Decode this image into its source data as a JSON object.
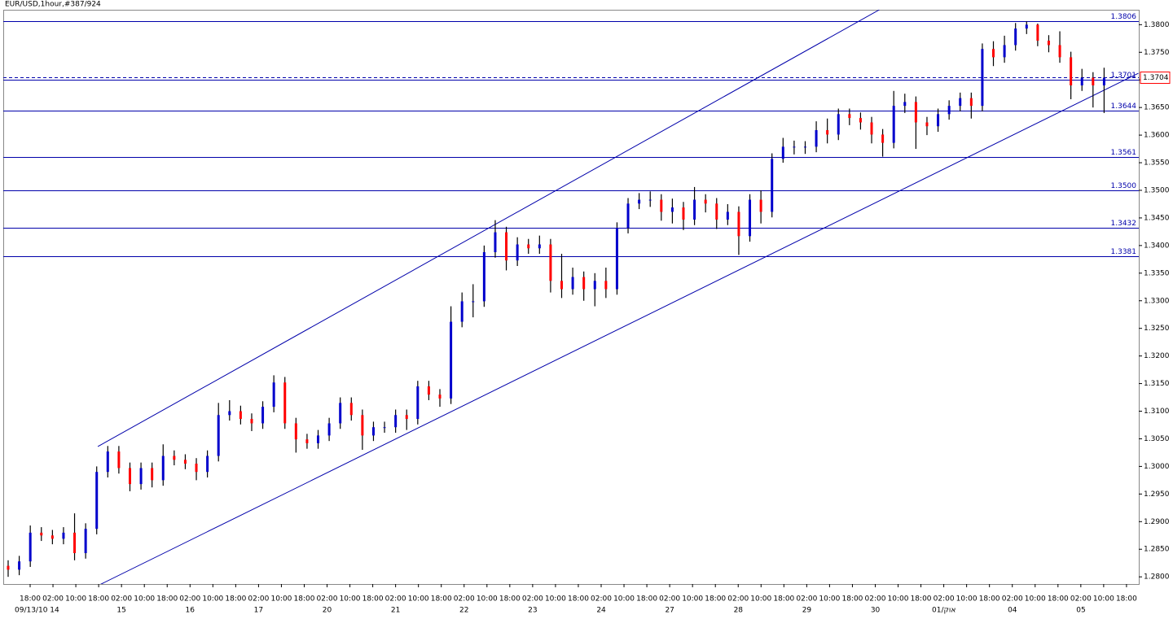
{
  "chart_data": {
    "type": "ohlc",
    "title": "EUR/USD,1hour,#387/924",
    "up_color": "#0000cc",
    "down_color": "#ff0000",
    "open": [
      1.282,
      1.2813,
      1.2828,
      1.288,
      1.2875,
      1.2869,
      1.288,
      1.2843,
      1.2887,
      1.299,
      1.3027,
      1.2997,
      1.2968,
      1.2997,
      1.2975,
      1.3019,
      1.3012,
      1.3005,
      1.299,
      1.3019,
      1.3093,
      1.31,
      1.3086,
      1.3078,
      1.3108,
      1.3152,
      1.3078,
      1.3049,
      1.3042,
      1.3056,
      1.3078,
      1.3115,
      1.3093,
      1.3056,
      1.3071,
      1.3071,
      1.3093,
      1.3086,
      1.3145,
      1.313,
      1.3123,
      1.3262,
      1.3299,
      1.3299,
      1.3388,
      1.3424,
      1.3373,
      1.3402,
      1.3395,
      1.3402,
      1.3336,
      1.3321,
      1.3343,
      1.3321,
      1.3336,
      1.3321,
      1.3432,
      1.3476,
      1.3483,
      1.3483,
      1.3461,
      1.3469,
      1.3447,
      1.3483,
      1.3476,
      1.3447,
      1.3461,
      1.3417,
      1.3483,
      1.3461,
      1.3557,
      1.3579,
      1.3579,
      1.3579,
      1.3609,
      1.3601,
      1.3638,
      1.3631,
      1.3623,
      1.3601,
      1.3586,
      1.3653,
      1.366,
      1.3623,
      1.3616,
      1.3638,
      1.3653,
      1.3667,
      1.3653,
      1.3756,
      1.3741,
      1.3763,
      1.3793,
      1.38,
      1.3771,
      1.3763,
      1.3741,
      1.369,
      1.3704,
      1.369
    ],
    "high": [
      1.283,
      1.2838,
      1.2893,
      1.289,
      1.2885,
      1.289,
      1.2915,
      1.2897,
      1.3,
      1.3037,
      1.3037,
      1.3007,
      1.3007,
      1.3007,
      1.304,
      1.3029,
      1.3022,
      1.3015,
      1.3029,
      1.3115,
      1.312,
      1.311,
      1.3096,
      1.3118,
      1.3165,
      1.3162,
      1.3088,
      1.3059,
      1.3066,
      1.3088,
      1.3125,
      1.3125,
      1.3103,
      1.3081,
      1.3081,
      1.3103,
      1.3103,
      1.3155,
      1.3155,
      1.314,
      1.329,
      1.3315,
      1.333,
      1.34,
      1.3446,
      1.3434,
      1.3415,
      1.3412,
      1.3418,
      1.3412,
      1.3385,
      1.336,
      1.3353,
      1.335,
      1.336,
      1.3442,
      1.3486,
      1.3495,
      1.3498,
      1.3493,
      1.3485,
      1.3479,
      1.3506,
      1.3493,
      1.3486,
      1.3475,
      1.3471,
      1.3493,
      1.35,
      1.3567,
      1.3595,
      1.359,
      1.3589,
      1.3625,
      1.363,
      1.3648,
      1.3648,
      1.3641,
      1.3633,
      1.3611,
      1.368,
      1.3675,
      1.367,
      1.3633,
      1.3648,
      1.3663,
      1.3677,
      1.3677,
      1.3766,
      1.377,
      1.378,
      1.3803,
      1.3806,
      1.3802,
      1.3781,
      1.3788,
      1.3751,
      1.372,
      1.3714,
      1.3722
    ],
    "low": [
      1.28,
      1.2803,
      1.2818,
      1.2865,
      1.2859,
      1.2859,
      1.283,
      1.2833,
      1.2877,
      1.298,
      1.2987,
      1.2955,
      1.2958,
      1.2962,
      1.2965,
      1.3002,
      1.2995,
      1.2975,
      1.298,
      1.3009,
      1.3083,
      1.3076,
      1.3064,
      1.3068,
      1.3098,
      1.3068,
      1.3025,
      1.3032,
      1.3032,
      1.3046,
      1.3068,
      1.3083,
      1.303,
      1.3046,
      1.3061,
      1.3061,
      1.3066,
      1.3076,
      1.312,
      1.3108,
      1.3113,
      1.3252,
      1.327,
      1.3289,
      1.3378,
      1.3355,
      1.3363,
      1.3385,
      1.3385,
      1.3315,
      1.3305,
      1.3311,
      1.33,
      1.329,
      1.3305,
      1.3311,
      1.3422,
      1.3466,
      1.347,
      1.3445,
      1.344,
      1.3428,
      1.3437,
      1.346,
      1.343,
      1.3437,
      1.3383,
      1.3407,
      1.344,
      1.3451,
      1.355,
      1.3565,
      1.3566,
      1.3569,
      1.3585,
      1.3591,
      1.3618,
      1.361,
      1.3585,
      1.3561,
      1.3576,
      1.364,
      1.3575,
      1.36,
      1.3606,
      1.3628,
      1.3643,
      1.363,
      1.3643,
      1.3725,
      1.3731,
      1.3753,
      1.3783,
      1.3761,
      1.375,
      1.3731,
      1.3665,
      1.368,
      1.365,
      1.364
    ],
    "close": [
      1.2813,
      1.2828,
      1.288,
      1.2875,
      1.2869,
      1.288,
      1.2843,
      1.2887,
      1.299,
      1.3027,
      1.2997,
      1.2968,
      1.2997,
      1.2975,
      1.3019,
      1.3012,
      1.3005,
      1.299,
      1.3019,
      1.3093,
      1.31,
      1.3086,
      1.3078,
      1.3108,
      1.3152,
      1.3078,
      1.3049,
      1.3042,
      1.3056,
      1.3078,
      1.3115,
      1.3093,
      1.3056,
      1.3071,
      1.3071,
      1.3093,
      1.3086,
      1.3145,
      1.313,
      1.3123,
      1.3262,
      1.3299,
      1.3299,
      1.3388,
      1.3424,
      1.3373,
      1.3402,
      1.3395,
      1.3402,
      1.3336,
      1.3321,
      1.3343,
      1.3321,
      1.3336,
      1.3321,
      1.3432,
      1.3476,
      1.3483,
      1.3483,
      1.3461,
      1.3469,
      1.3447,
      1.3483,
      1.3476,
      1.3447,
      1.3461,
      1.3417,
      1.3483,
      1.3461,
      1.3557,
      1.3579,
      1.3579,
      1.3579,
      1.3609,
      1.3601,
      1.3638,
      1.3631,
      1.3623,
      1.3601,
      1.3586,
      1.3653,
      1.366,
      1.3623,
      1.3616,
      1.3638,
      1.3653,
      1.3667,
      1.3653,
      1.3756,
      1.3741,
      1.3763,
      1.3793,
      1.38,
      1.3771,
      1.3763,
      1.3741,
      1.369,
      1.3704,
      1.369,
      1.3704
    ],
    "ylim": [
      1.2787,
      1.3827
    ],
    "yticks": [
      {
        "value": 1.28,
        "label": "1.2800"
      },
      {
        "value": 1.285,
        "label": "1.2850"
      },
      {
        "value": 1.29,
        "label": "1.2900"
      },
      {
        "value": 1.295,
        "label": "1.2950"
      },
      {
        "value": 1.3,
        "label": "1.3000"
      },
      {
        "value": 1.305,
        "label": "1.3050"
      },
      {
        "value": 1.31,
        "label": "1.3100"
      },
      {
        "value": 1.315,
        "label": "1.3150"
      },
      {
        "value": 1.32,
        "label": "1.3200"
      },
      {
        "value": 1.325,
        "label": "1.3250"
      },
      {
        "value": 1.33,
        "label": "1.3300"
      },
      {
        "value": 1.335,
        "label": "1.3350"
      },
      {
        "value": 1.34,
        "label": "1.3400"
      },
      {
        "value": 1.345,
        "label": "1.3450"
      },
      {
        "value": 1.35,
        "label": "1.3500"
      },
      {
        "value": 1.355,
        "label": "1.3550"
      },
      {
        "value": 1.36,
        "label": "1.3600"
      },
      {
        "value": 1.365,
        "label": "1.3650"
      },
      {
        "value": 1.37,
        "label": "1.3700"
      },
      {
        "value": 1.375,
        "label": "1.3750"
      },
      {
        "value": 1.38,
        "label": "1.3800"
      }
    ],
    "levels": [
      1.3806,
      1.3701,
      1.3644,
      1.3561,
      {
        "value": 1.35,
        "label": "1.3500"
      },
      1.3432,
      1.3381
    ],
    "level_color": "#0000aa",
    "current_price": 1.3704,
    "trendlines": [
      {
        "x": [
          8.1,
          78.7
        ],
        "y": [
          1.3036,
          1.3827
        ]
      },
      {
        "x": [
          8.1,
          102.1
        ],
        "y": [
          1.2784,
          1.3712
        ]
      }
    ],
    "time_labels": [
      "18:00",
      "02:00",
      "10:00",
      "18:00",
      "02:00",
      "10:00",
      "18:00",
      "02:00",
      "10:00",
      "18:00",
      "02:00",
      "10:00",
      "18:00",
      "02:00",
      "10:00",
      "18:00",
      "02:00",
      "10:00",
      "18:00",
      "02:00",
      "10:00",
      "18:00",
      "02:00",
      "10:00",
      "18:00",
      "02:00",
      "10:00",
      "18:00",
      "02:00",
      "10:00",
      "18:00",
      "02:00",
      "10:00",
      "18:00",
      "02:00",
      "10:00",
      "18:00",
      "02:00",
      "10:00",
      "18:00",
      "02:00",
      "10:00",
      "18:00",
      "02:00",
      "10:00",
      "18:00",
      "02:00",
      "10:00",
      "18:00"
    ],
    "date_labels": [
      "09/13/10 14",
      "15",
      "16",
      "17",
      "20",
      "21",
      "22",
      "23",
      "24",
      "27",
      "28",
      "29",
      "30",
      "01/אוק",
      "04",
      "05"
    ]
  }
}
